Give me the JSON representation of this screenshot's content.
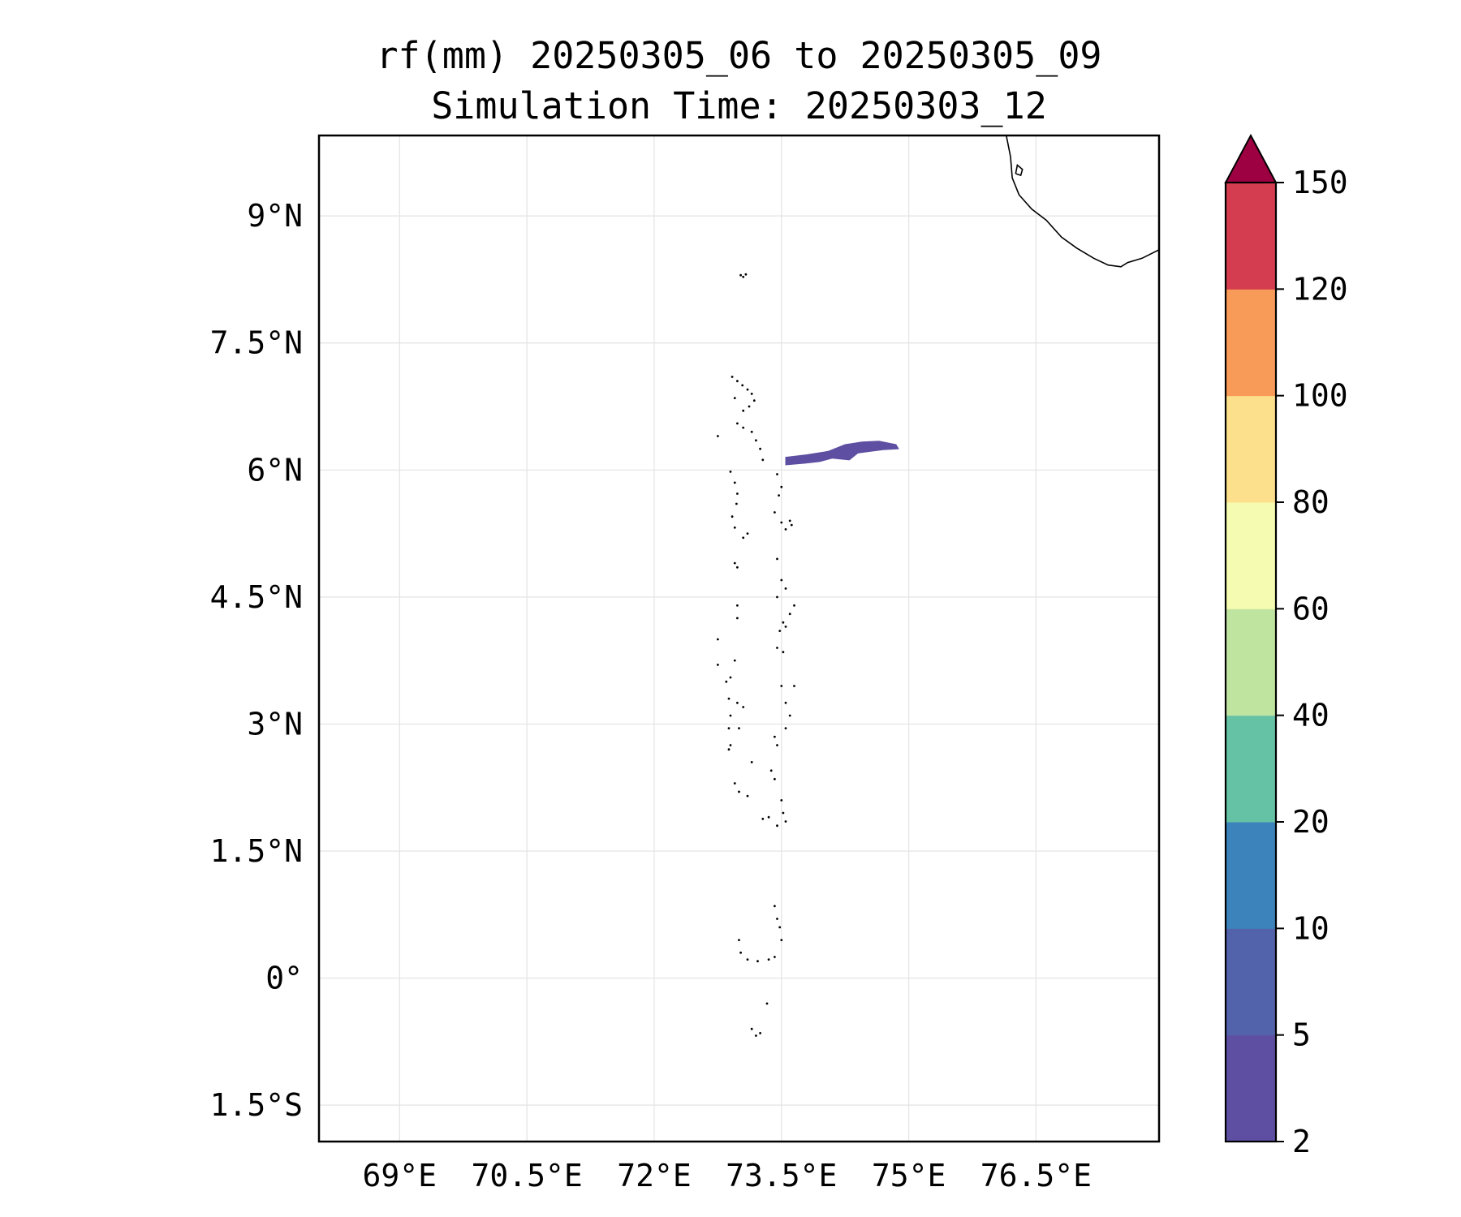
{
  "map": {
    "title_line1": "rf(mm) 20250305_06 to 20250305_09",
    "title_line2": "Simulation Time: 20250303_12",
    "lon_ticks": [
      {
        "lon": 69.0,
        "label": "69°E"
      },
      {
        "lon": 70.5,
        "label": "70.5°E"
      },
      {
        "lon": 72.0,
        "label": "72°E"
      },
      {
        "lon": 73.5,
        "label": "73.5°E"
      },
      {
        "lon": 75.0,
        "label": "75°E"
      },
      {
        "lon": 76.5,
        "label": "76.5°E"
      }
    ],
    "lat_ticks": [
      {
        "lat": 9.0,
        "label": "9°N"
      },
      {
        "lat": 7.5,
        "label": "7.5°N"
      },
      {
        "lat": 6.0,
        "label": "6°N"
      },
      {
        "lat": 4.5,
        "label": "4.5°N"
      },
      {
        "lat": 3.0,
        "label": "3°N"
      },
      {
        "lat": 1.5,
        "label": "1.5°N"
      },
      {
        "lat": 0.0,
        "label": "0°"
      },
      {
        "lat": -1.5,
        "label": "1.5°S"
      }
    ],
    "lon_range": [
      68.05,
      77.95
    ],
    "lat_range": [
      -1.93,
      9.95
    ],
    "grid": true,
    "rain_cells": [
      {
        "level": "2-5",
        "color": "#5e4fa2",
        "polygon": [
          [
            73.55,
            6.15
          ],
          [
            73.8,
            6.18
          ],
          [
            74.05,
            6.22
          ],
          [
            74.25,
            6.3
          ],
          [
            74.45,
            6.33
          ],
          [
            74.65,
            6.34
          ],
          [
            74.85,
            6.3
          ],
          [
            74.88,
            6.25
          ],
          [
            74.7,
            6.24
          ],
          [
            74.55,
            6.22
          ],
          [
            74.4,
            6.2
          ],
          [
            74.3,
            6.12
          ],
          [
            74.1,
            6.14
          ],
          [
            73.95,
            6.1
          ],
          [
            73.78,
            6.08
          ],
          [
            73.55,
            6.06
          ]
        ]
      }
    ]
  },
  "colorbar": {
    "extend": "max",
    "extend_color": "#9e0142",
    "bins": [
      {
        "lower": "2",
        "color": "#5e4fa2"
      },
      {
        "lower": "5",
        "color": "#5262ab"
      },
      {
        "lower": "10",
        "color": "#3c83bc"
      },
      {
        "lower": "20",
        "color": "#66c2a5"
      },
      {
        "lower": "40",
        "color": "#bfe4a0"
      },
      {
        "lower": "60",
        "color": "#f5fbb0"
      },
      {
        "lower": "80",
        "color": "#fde08b"
      },
      {
        "lower": "100",
        "color": "#f99b58"
      },
      {
        "lower": "120",
        "color": "#d43d4f"
      }
    ],
    "top_label": "150"
  }
}
